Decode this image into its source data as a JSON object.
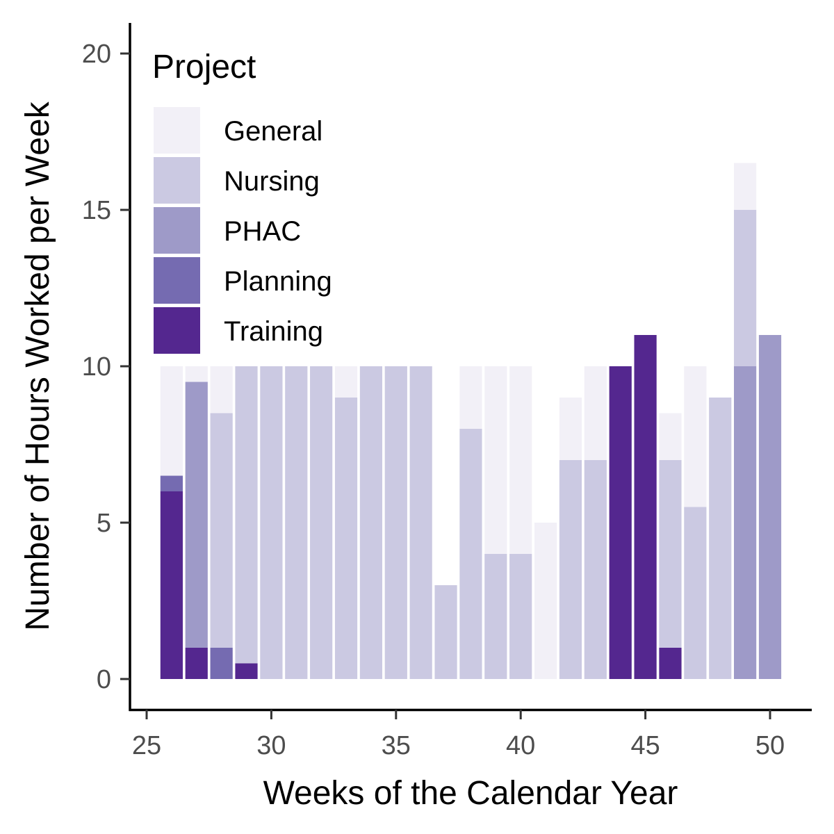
{
  "chart_data": {
    "type": "bar",
    "stacked": true,
    "title": "",
    "xlabel": "Weeks of the Calendar Year",
    "ylabel": "Number of Hours Worked per Week",
    "xlim": [
      24.8,
      51.7
    ],
    "ylim": [
      -0.75,
      21
    ],
    "x_ticks": [
      25,
      30,
      35,
      40,
      45,
      50
    ],
    "y_ticks": [
      0,
      5,
      10,
      15,
      20
    ],
    "grid": false,
    "legend": {
      "title": "Project",
      "position": "top-left"
    },
    "categories": [
      26,
      27,
      28,
      29,
      30,
      31,
      32,
      33,
      34,
      35,
      36,
      37,
      38,
      39,
      40,
      41,
      42,
      43,
      44,
      45,
      46,
      47,
      48,
      49,
      50
    ],
    "series": [
      {
        "name": "Training",
        "color": "#54278f",
        "values": [
          6,
          1,
          0,
          0.5,
          0,
          0,
          0,
          0,
          0,
          0,
          0,
          0,
          0,
          0,
          0,
          0,
          0,
          0,
          10,
          11,
          1,
          0,
          0,
          0,
          0
        ]
      },
      {
        "name": "Planning",
        "color": "#756bb1",
        "values": [
          0.5,
          0,
          1,
          0,
          0,
          0,
          0,
          0,
          0,
          0,
          0,
          0,
          0,
          0,
          0,
          0,
          0,
          0,
          0,
          0,
          0,
          0,
          0,
          0,
          0
        ]
      },
      {
        "name": "PHAC",
        "color": "#9e9ac8",
        "values": [
          0,
          8.5,
          0,
          0,
          0,
          0,
          0,
          0,
          0,
          0,
          0,
          0,
          0,
          0,
          0,
          0,
          0,
          0,
          0,
          0,
          0,
          0,
          0,
          10,
          11
        ]
      },
      {
        "name": "Nursing",
        "color": "#cbc9e2",
        "values": [
          0,
          0,
          7.5,
          9.5,
          10,
          10,
          10,
          9,
          10,
          10,
          10,
          3,
          8,
          4,
          4,
          0,
          7,
          7,
          0,
          0,
          6,
          5.5,
          9,
          5,
          0
        ]
      },
      {
        "name": "General",
        "color": "#f2f0f7",
        "values": [
          3.5,
          0.5,
          1.5,
          0,
          0,
          0,
          0,
          1,
          0,
          0,
          0,
          0,
          2,
          6,
          6,
          5,
          2,
          3,
          0,
          0,
          1.5,
          4.5,
          0,
          1.5,
          0
        ]
      }
    ]
  },
  "legend_order": [
    "General",
    "Nursing",
    "PHAC",
    "Planning",
    "Training"
  ]
}
